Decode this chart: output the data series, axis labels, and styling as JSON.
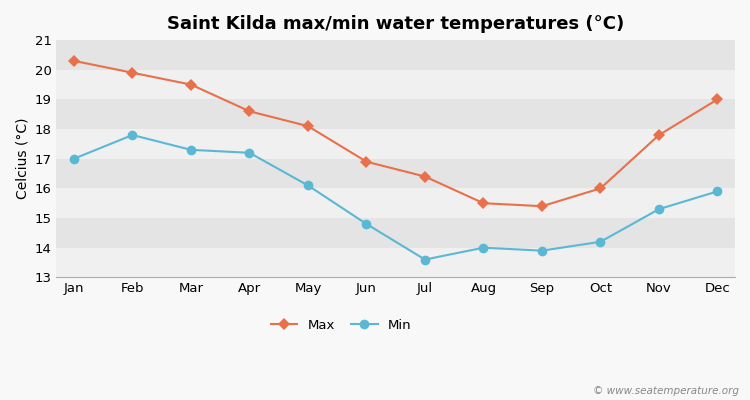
{
  "title": "Saint Kilda max/min water temperatures (°C)",
  "ylabel": "Celcius (°C)",
  "months": [
    "Jan",
    "Feb",
    "Mar",
    "Apr",
    "May",
    "Jun",
    "Jul",
    "Aug",
    "Sep",
    "Oct",
    "Nov",
    "Dec"
  ],
  "max_values": [
    20.3,
    19.9,
    19.5,
    18.6,
    18.1,
    16.9,
    16.4,
    15.5,
    15.4,
    16.0,
    17.8,
    19.0
  ],
  "min_values": [
    17.0,
    17.8,
    17.3,
    17.2,
    16.1,
    14.8,
    13.6,
    14.0,
    13.9,
    14.2,
    15.3,
    15.9
  ],
  "max_color": "#E8704A",
  "min_color": "#5BB8D4",
  "ylim": [
    13,
    21
  ],
  "yticks": [
    13,
    14,
    15,
    16,
    17,
    18,
    19,
    20,
    21
  ],
  "band_colors": [
    "#f0f0f0",
    "#e4e4e4"
  ],
  "outer_bg": "#f8f8f8",
  "grid_color": "#d8d8d8",
  "watermark": "© www.seatemperature.org",
  "legend_max": "Max",
  "legend_min": "Min",
  "title_fontsize": 13,
  "axis_fontsize": 10,
  "tick_fontsize": 9.5,
  "max_marker": "D",
  "min_marker": "o",
  "markersize_max": 6,
  "markersize_min": 7,
  "linewidth": 1.5
}
